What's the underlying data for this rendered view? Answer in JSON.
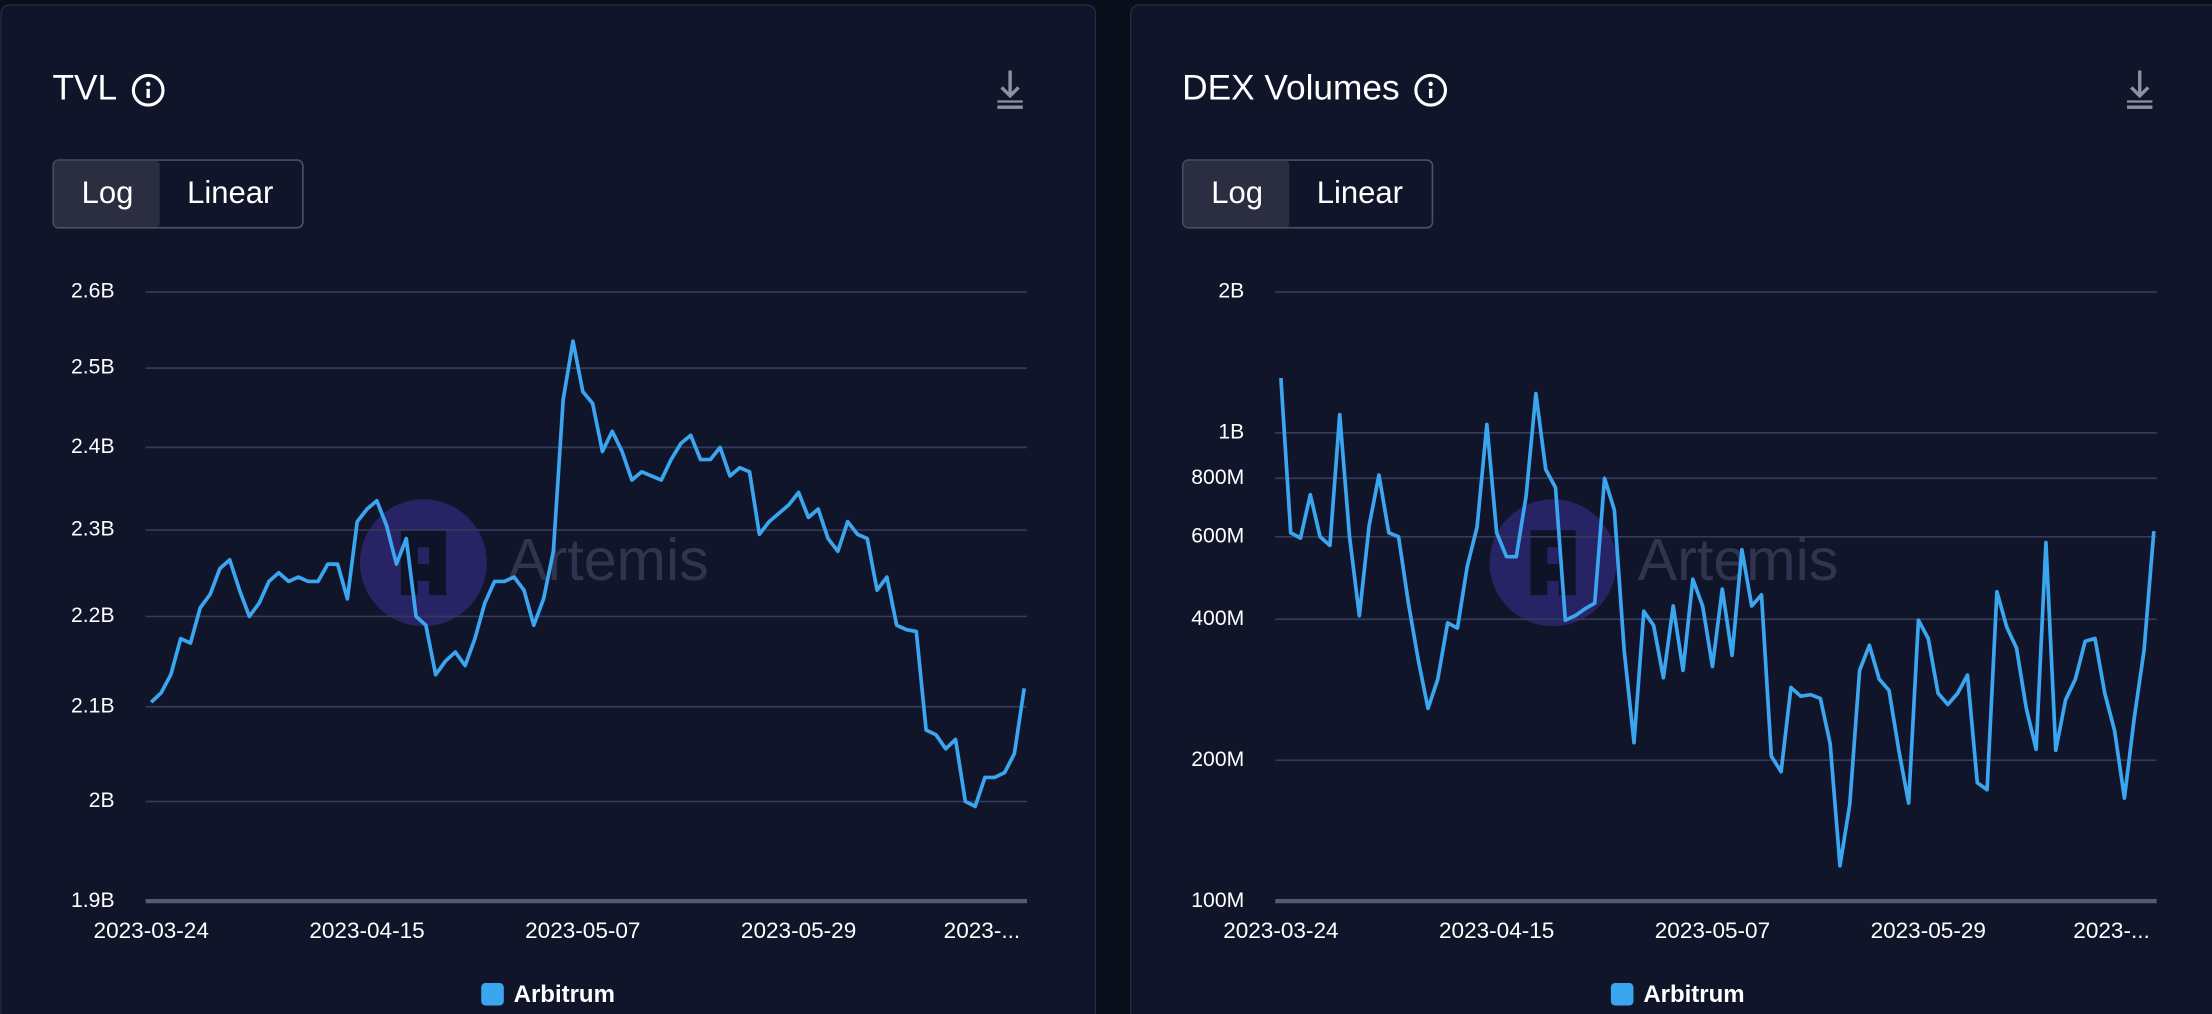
{
  "chart_data": [
    {
      "type": "line",
      "title": "TVL",
      "scale_options": [
        "Log",
        "Linear"
      ],
      "selected_scale": "Log",
      "y_scale": "log",
      "grid": true,
      "legend_position": "bottom",
      "watermark": "Artemis",
      "x": [
        "2023-03-24",
        "2023-03-25",
        "2023-03-26",
        "2023-03-27",
        "2023-03-28",
        "2023-03-29",
        "2023-03-30",
        "2023-03-31",
        "2023-04-01",
        "2023-04-02",
        "2023-04-03",
        "2023-04-04",
        "2023-04-05",
        "2023-04-06",
        "2023-04-07",
        "2023-04-08",
        "2023-04-09",
        "2023-04-10",
        "2023-04-11",
        "2023-04-12",
        "2023-04-13",
        "2023-04-14",
        "2023-04-15",
        "2023-04-16",
        "2023-04-17",
        "2023-04-18",
        "2023-04-19",
        "2023-04-20",
        "2023-04-21",
        "2023-04-22",
        "2023-04-23",
        "2023-04-24",
        "2023-04-25",
        "2023-04-26",
        "2023-04-27",
        "2023-04-28",
        "2023-04-29",
        "2023-04-30",
        "2023-05-01",
        "2023-05-02",
        "2023-05-03",
        "2023-05-04",
        "2023-05-05",
        "2023-05-06",
        "2023-05-07",
        "2023-05-08",
        "2023-05-09",
        "2023-05-10",
        "2023-05-11",
        "2023-05-12",
        "2023-05-13",
        "2023-05-14",
        "2023-05-15",
        "2023-05-16",
        "2023-05-17",
        "2023-05-18",
        "2023-05-19",
        "2023-05-20",
        "2023-05-21",
        "2023-05-22",
        "2023-05-23",
        "2023-05-24",
        "2023-05-25",
        "2023-05-26",
        "2023-05-27",
        "2023-05-28",
        "2023-05-29",
        "2023-05-30",
        "2023-05-31",
        "2023-06-01",
        "2023-06-02",
        "2023-06-03",
        "2023-06-04",
        "2023-06-05",
        "2023-06-06",
        "2023-06-07",
        "2023-06-08",
        "2023-06-09",
        "2023-06-10",
        "2023-06-11",
        "2023-06-12",
        "2023-06-13",
        "2023-06-14",
        "2023-06-15",
        "2023-06-16",
        "2023-06-17",
        "2023-06-18",
        "2023-06-19",
        "2023-06-20",
        "2023-06-21"
      ],
      "xticks": [
        "2023-03-24",
        "2023-04-15",
        "2023-05-07",
        "2023-05-29",
        {
          "value": "2023-06-20",
          "label": "2023-..."
        }
      ],
      "ylim": [
        1900000000,
        2600000000
      ],
      "yticks": [
        {
          "value": 1900000000,
          "label": "1.9B"
        },
        {
          "value": 2000000000,
          "label": "2B"
        },
        {
          "value": 2100000000,
          "label": "2.1B"
        },
        {
          "value": 2200000000,
          "label": "2.2B"
        },
        {
          "value": 2300000000,
          "label": "2.3B"
        },
        {
          "value": 2400000000,
          "label": "2.4B"
        },
        {
          "value": 2500000000,
          "label": "2.5B"
        },
        {
          "value": 2600000000,
          "label": "2.6B"
        }
      ],
      "series": [
        {
          "name": "Arbitrum",
          "color": "#3ba6f0",
          "values": [
            2105000000,
            2115000000,
            2135000000,
            2175000000,
            2170000000,
            2210000000,
            2225000000,
            2255000000,
            2265000000,
            2230000000,
            2200000000,
            2215000000,
            2240000000,
            2250000000,
            2240000000,
            2245000000,
            2240000000,
            2240000000,
            2260000000,
            2260000000,
            2220000000,
            2310000000,
            2325000000,
            2335000000,
            2305000000,
            2260000000,
            2290000000,
            2200000000,
            2190000000,
            2135000000,
            2150000000,
            2160000000,
            2145000000,
            2175000000,
            2215000000,
            2240000000,
            2240000000,
            2245000000,
            2230000000,
            2190000000,
            2220000000,
            2275000000,
            2460000000,
            2535000000,
            2470000000,
            2455000000,
            2395000000,
            2420000000,
            2395000000,
            2360000000,
            2370000000,
            2365000000,
            2360000000,
            2385000000,
            2405000000,
            2415000000,
            2385000000,
            2385000000,
            2400000000,
            2365000000,
            2375000000,
            2370000000,
            2295000000,
            2310000000,
            2320000000,
            2330000000,
            2345000000,
            2315000000,
            2325000000,
            2290000000,
            2275000000,
            2310000000,
            2295000000,
            2290000000,
            2230000000,
            2245000000,
            2190000000,
            2185000000,
            2183000000,
            2075000000,
            2070000000,
            2055000000,
            2065000000,
            2000000000,
            1995000000,
            2025000000,
            2025000000,
            2030000000,
            2050000000,
            2120000000
          ]
        }
      ]
    },
    {
      "type": "line",
      "title": "DEX Volumes",
      "scale_options": [
        "Log",
        "Linear"
      ],
      "selected_scale": "Log",
      "y_scale": "log",
      "grid": true,
      "legend_position": "bottom",
      "watermark": "Artemis",
      "x": [
        "2023-03-24",
        "2023-03-25",
        "2023-03-26",
        "2023-03-27",
        "2023-03-28",
        "2023-03-29",
        "2023-03-30",
        "2023-03-31",
        "2023-04-01",
        "2023-04-02",
        "2023-04-03",
        "2023-04-04",
        "2023-04-05",
        "2023-04-06",
        "2023-04-07",
        "2023-04-08",
        "2023-04-09",
        "2023-04-10",
        "2023-04-11",
        "2023-04-12",
        "2023-04-13",
        "2023-04-14",
        "2023-04-15",
        "2023-04-16",
        "2023-04-17",
        "2023-04-18",
        "2023-04-19",
        "2023-04-20",
        "2023-04-21",
        "2023-04-22",
        "2023-04-23",
        "2023-04-24",
        "2023-04-25",
        "2023-04-26",
        "2023-04-27",
        "2023-04-28",
        "2023-04-29",
        "2023-04-30",
        "2023-05-01",
        "2023-05-02",
        "2023-05-03",
        "2023-05-04",
        "2023-05-05",
        "2023-05-06",
        "2023-05-07",
        "2023-05-08",
        "2023-05-09",
        "2023-05-10",
        "2023-05-11",
        "2023-05-12",
        "2023-05-13",
        "2023-05-14",
        "2023-05-15",
        "2023-05-16",
        "2023-05-17",
        "2023-05-18",
        "2023-05-19",
        "2023-05-20",
        "2023-05-21",
        "2023-05-22",
        "2023-05-23",
        "2023-05-24",
        "2023-05-25",
        "2023-05-26",
        "2023-05-27",
        "2023-05-28",
        "2023-05-29",
        "2023-05-30",
        "2023-05-31",
        "2023-06-01",
        "2023-06-02",
        "2023-06-03",
        "2023-06-04",
        "2023-06-05",
        "2023-06-06",
        "2023-06-07",
        "2023-06-08",
        "2023-06-09",
        "2023-06-10",
        "2023-06-11",
        "2023-06-12",
        "2023-06-13",
        "2023-06-14",
        "2023-06-15",
        "2023-06-16",
        "2023-06-17",
        "2023-06-18",
        "2023-06-19",
        "2023-06-20",
        "2023-06-21"
      ],
      "xticks": [
        "2023-03-24",
        "2023-04-15",
        "2023-05-07",
        "2023-05-29",
        {
          "value": "2023-06-20",
          "label": "2023-..."
        }
      ],
      "ylim": [
        100000000,
        2000000000
      ],
      "yticks": [
        {
          "value": 100000000,
          "label": "100M"
        },
        {
          "value": 200000000,
          "label": "200M"
        },
        {
          "value": 400000000,
          "label": "400M"
        },
        {
          "value": 600000000,
          "label": "600M"
        },
        {
          "value": 800000000,
          "label": "800M"
        },
        {
          "value": 1000000000,
          "label": "1B"
        },
        {
          "value": 2000000000,
          "label": "2B"
        }
      ],
      "series": [
        {
          "name": "Arbitrum",
          "color": "#3ba6f0",
          "values": [
            1310000000,
            612000000,
            596000000,
            738000000,
            600000000,
            575000000,
            1094000000,
            600000000,
            407000000,
            634000000,
            813000000,
            612000000,
            600000000,
            433000000,
            328000000,
            258000000,
            298000000,
            393000000,
            383000000,
            519000000,
            629000000,
            1042000000,
            612000000,
            544000000,
            544000000,
            733000000,
            1213000000,
            836000000,
            764000000,
            398000000,
            407000000,
            421000000,
            433000000,
            800000000,
            684000000,
            343000000,
            218000000,
            416000000,
            388000000,
            300000000,
            427000000,
            311000000,
            487000000,
            427000000,
            317000000,
            464000000,
            335000000,
            563000000,
            427000000,
            451000000,
            204000000,
            189000000,
            286000000,
            274000000,
            276000000,
            271000000,
            217000000,
            119000000,
            161000000,
            311000000,
            352000000,
            298000000,
            282000000,
            210000000,
            162000000,
            398000000,
            364000000,
            278000000,
            263000000,
            278000000,
            304000000,
            179000000,
            173000000,
            458000000,
            385000000,
            347000000,
            258000000,
            211000000,
            583000000,
            210000000,
            269000000,
            298000000,
            359000000,
            364000000,
            278000000,
            231000000,
            166000000,
            246000000,
            343000000,
            617000000
          ]
        }
      ]
    }
  ]
}
